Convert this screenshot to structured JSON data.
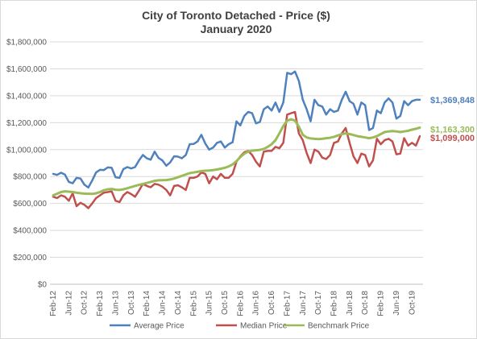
{
  "chart_data": {
    "type": "line",
    "title": "City of Toronto Detached - Price ($)",
    "subtitle": "January 2020",
    "xlabel": "",
    "ylabel": "",
    "ylim": [
      0,
      1800000
    ],
    "y_tick_values": [
      0,
      200000,
      400000,
      600000,
      800000,
      1000000,
      1200000,
      1400000,
      1600000,
      1800000
    ],
    "y_tick_labels": [
      "$0",
      "$200,000",
      "$400,000",
      "$600,000",
      "$800,000",
      "$1,000,000",
      "$1,200,000",
      "$1,400,000",
      "$1,600,000",
      "$1,800,000"
    ],
    "x_tick_labels": [
      "Feb-12",
      "Jun-12",
      "Oct-12",
      "Feb-13",
      "Jun-13",
      "Oct-13",
      "Feb-14",
      "Jun-14",
      "Oct-14",
      "Feb-15",
      "Jun-15",
      "Oct-15",
      "Feb-16",
      "Jun-16",
      "Oct-16",
      "Feb-17",
      "Jun-17",
      "Oct-17",
      "Feb-18",
      "Jun-18",
      "Oct-18",
      "Feb-19",
      "Jun-19",
      "Oct-19"
    ],
    "x_start": "Feb-12",
    "x_end": "Jan-20",
    "grid": true,
    "legend_position": "bottom",
    "series": [
      {
        "name": "Average Price",
        "color": "#4f81bd",
        "end_label": "$1,369,848",
        "values": [
          820000,
          812000,
          828000,
          815000,
          760000,
          750000,
          790000,
          785000,
          740000,
          718000,
          770000,
          830000,
          850000,
          848000,
          868000,
          865000,
          795000,
          790000,
          855000,
          870000,
          860000,
          870000,
          920000,
          960000,
          935000,
          925000,
          985000,
          938000,
          920000,
          880000,
          905000,
          950000,
          948000,
          935000,
          960000,
          1040000,
          1042000,
          1060000,
          1110000,
          1045000,
          1000000,
          1015000,
          1050000,
          1060000,
          1015000,
          1040000,
          1055000,
          1210000,
          1180000,
          1250000,
          1280000,
          1270000,
          1195000,
          1205000,
          1300000,
          1320000,
          1290000,
          1350000,
          1280000,
          1350000,
          1570000,
          1560000,
          1580000,
          1510000,
          1370000,
          1300000,
          1210000,
          1370000,
          1330000,
          1320000,
          1260000,
          1300000,
          1280000,
          1290000,
          1370000,
          1430000,
          1360000,
          1340000,
          1260000,
          1350000,
          1330000,
          1145000,
          1160000,
          1290000,
          1270000,
          1350000,
          1380000,
          1350000,
          1230000,
          1250000,
          1360000,
          1330000,
          1360000,
          1370000,
          1369848
        ]
      },
      {
        "name": "Median Price",
        "color": "#c0504d",
        "end_label": "$1,099,000",
        "values": [
          650000,
          640000,
          660000,
          650000,
          620000,
          675000,
          580000,
          605000,
          590000,
          565000,
          600000,
          640000,
          660000,
          680000,
          685000,
          690000,
          620000,
          610000,
          660000,
          685000,
          670000,
          650000,
          695000,
          745000,
          730000,
          720000,
          745000,
          740000,
          725000,
          700000,
          660000,
          730000,
          735000,
          720000,
          700000,
          790000,
          790000,
          800000,
          830000,
          820000,
          750000,
          800000,
          780000,
          820000,
          790000,
          790000,
          820000,
          910000,
          950000,
          980000,
          990000,
          960000,
          910000,
          875000,
          985000,
          990000,
          990000,
          1020000,
          1010000,
          1050000,
          1260000,
          1270000,
          1280000,
          1120000,
          1070000,
          975000,
          900000,
          1000000,
          985000,
          940000,
          930000,
          960000,
          1050000,
          1060000,
          1120000,
          1160000,
          1050000,
          950000,
          900000,
          970000,
          960000,
          875000,
          920000,
          1080000,
          1040000,
          1070000,
          1080000,
          1060000,
          965000,
          970000,
          1085000,
          1030000,
          1050000,
          1030000,
          1099000
        ]
      },
      {
        "name": "Benchmark Price",
        "color": "#9bbb59",
        "end_label": "$1,163,300",
        "values": [
          660000,
          672000,
          685000,
          690000,
          688000,
          685000,
          680000,
          676000,
          673000,
          672000,
          671000,
          675000,
          685000,
          698000,
          705000,
          708000,
          702000,
          700000,
          705000,
          713000,
          722000,
          730000,
          738000,
          745000,
          752000,
          760000,
          768000,
          772000,
          773000,
          774000,
          778000,
          785000,
          795000,
          805000,
          815000,
          825000,
          830000,
          835000,
          840000,
          843000,
          845000,
          848000,
          852000,
          858000,
          865000,
          875000,
          890000,
          915000,
          945000,
          970000,
          985000,
          992000,
          995000,
          998000,
          1005000,
          1020000,
          1040000,
          1070000,
          1120000,
          1175000,
          1215000,
          1225000,
          1215000,
          1170000,
          1110000,
          1090000,
          1083000,
          1080000,
          1078000,
          1080000,
          1085000,
          1088000,
          1095000,
          1105000,
          1115000,
          1120000,
          1115000,
          1108000,
          1100000,
          1095000,
          1090000,
          1085000,
          1090000,
          1100000,
          1115000,
          1130000,
          1135000,
          1138000,
          1135000,
          1130000,
          1135000,
          1140000,
          1148000,
          1155000,
          1163300
        ]
      }
    ]
  }
}
